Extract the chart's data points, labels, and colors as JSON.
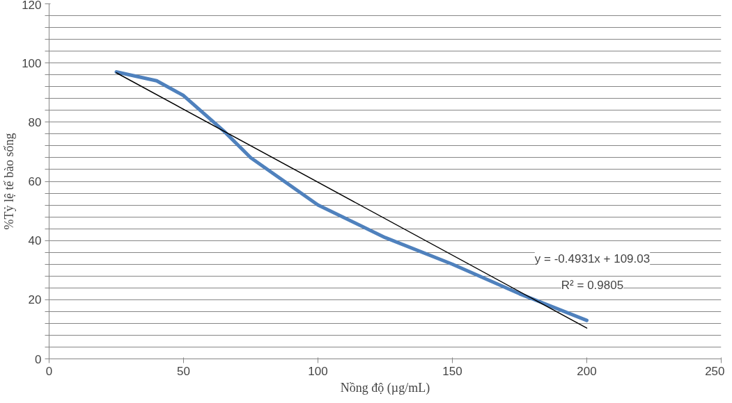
{
  "chart_data": {
    "type": "line",
    "xlabel": "Nồng độ (µg/mL)",
    "ylabel": "%Tỷ lệ tế bào sống",
    "xlim": [
      0,
      250
    ],
    "xticks": [
      0,
      50,
      100,
      150,
      200,
      250
    ],
    "ylim": [
      0,
      120
    ],
    "yticks": [
      0,
      {
        "value": 4,
        "label": null
      },
      {
        "value": 8,
        "label": null
      },
      {
        "value": 12,
        "label": null
      },
      {
        "value": 16,
        "label": null
      },
      20,
      {
        "value": 24,
        "label": null
      },
      {
        "value": 28,
        "label": null
      },
      {
        "value": 32,
        "label": null
      },
      {
        "value": 36,
        "label": null
      },
      40,
      {
        "value": 44,
        "label": null
      },
      {
        "value": 48,
        "label": null
      },
      {
        "value": 52,
        "label": null
      },
      {
        "value": 56,
        "label": null
      },
      60,
      {
        "value": 64,
        "label": null
      },
      {
        "value": 68,
        "label": null
      },
      {
        "value": 72,
        "label": null
      },
      {
        "value": 76,
        "label": null
      },
      80,
      {
        "value": 84,
        "label": null
      },
      {
        "value": 88,
        "label": null
      },
      {
        "value": 92,
        "label": null
      },
      {
        "value": 96,
        "label": null
      },
      100,
      {
        "value": 104,
        "label": null
      },
      {
        "value": 108,
        "label": null
      },
      {
        "value": 112,
        "label": null
      },
      {
        "value": 116,
        "label": null
      },
      120
    ],
    "grid": "y",
    "marker": "none",
    "series": [
      {
        "color": "#4f81bd",
        "x": [
          25,
          40,
          50,
          65,
          75,
          100,
          125,
          150,
          175,
          200
        ],
        "values": [
          97,
          94,
          89,
          77,
          68,
          52,
          41,
          32,
          22,
          13
        ]
      },
      {
        "color": "#000000",
        "x": [
          25,
          200
        ],
        "values": [
          96.7,
          10.4
        ]
      }
    ],
    "annotations": [
      "y = -0.4931x + 109.03",
      "R² = 0.9805"
    ]
  }
}
